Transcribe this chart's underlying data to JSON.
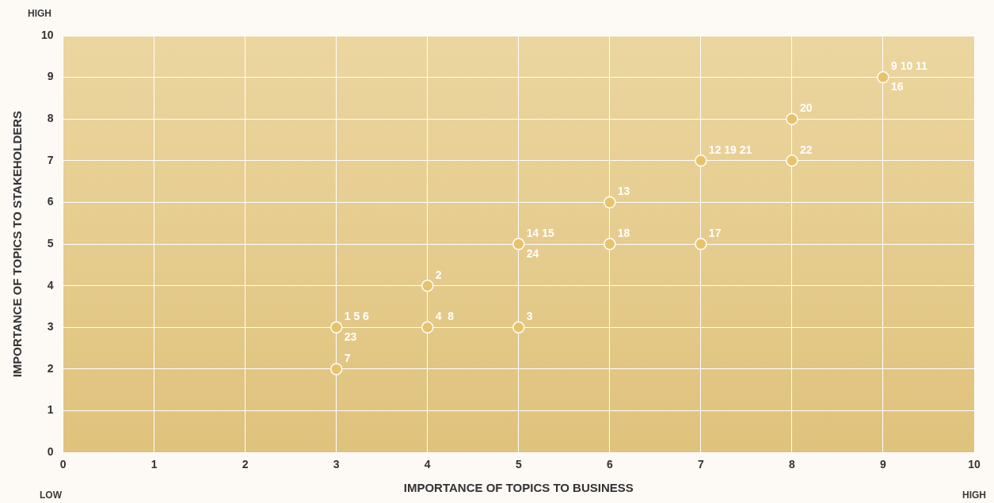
{
  "chart_data": {
    "type": "scatter",
    "xlabel": "IMPORTANCE OF TOPICS TO BUSINESS",
    "ylabel": "IMPORTANCE OF TOPICS TO STAKEHOLDERS",
    "x": [
      3,
      3,
      4,
      4,
      5,
      5,
      6,
      6,
      7,
      7,
      8,
      8,
      9
    ],
    "values": [
      3,
      2,
      4,
      3,
      3,
      5,
      6,
      5,
      7,
      5,
      8,
      7,
      9
    ],
    "color": "#e6c46c",
    "marker": "circle",
    "xlim": [
      0,
      10
    ],
    "ylim": [
      0,
      10
    ],
    "xticks": [
      0,
      1,
      2,
      3,
      4,
      5,
      6,
      7,
      8,
      9,
      10
    ],
    "yticks": [
      0,
      1,
      2,
      3,
      4,
      5,
      6,
      7,
      8,
      9,
      10
    ],
    "grid": true,
    "annotations": [
      "HIGH",
      "LOW",
      "HIGH",
      {
        "text": "1 5 6",
        "x": 3,
        "y": 3
      },
      {
        "text": "23",
        "x": 3,
        "y": 3
      },
      {
        "text": "7",
        "x": 3,
        "y": 2
      },
      {
        "text": "2",
        "x": 4,
        "y": 4
      },
      {
        "text": "4  8",
        "x": 4,
        "y": 3
      },
      {
        "text": "3",
        "x": 5,
        "y": 3
      },
      {
        "text": "14 15",
        "x": 5,
        "y": 5
      },
      {
        "text": "24",
        "x": 5,
        "y": 5
      },
      {
        "text": "13",
        "x": 6,
        "y": 6
      },
      {
        "text": "18",
        "x": 6,
        "y": 5
      },
      {
        "text": "12 19 21",
        "x": 7,
        "y": 7
      },
      {
        "text": "17",
        "x": 7,
        "y": 5
      },
      {
        "text": "20",
        "x": 8,
        "y": 8
      },
      {
        "text": "22",
        "x": 8,
        "y": 7
      },
      {
        "text": "9 10 11",
        "x": 9,
        "y": 9
      },
      {
        "text": "16",
        "x": 9,
        "y": 9
      }
    ]
  }
}
